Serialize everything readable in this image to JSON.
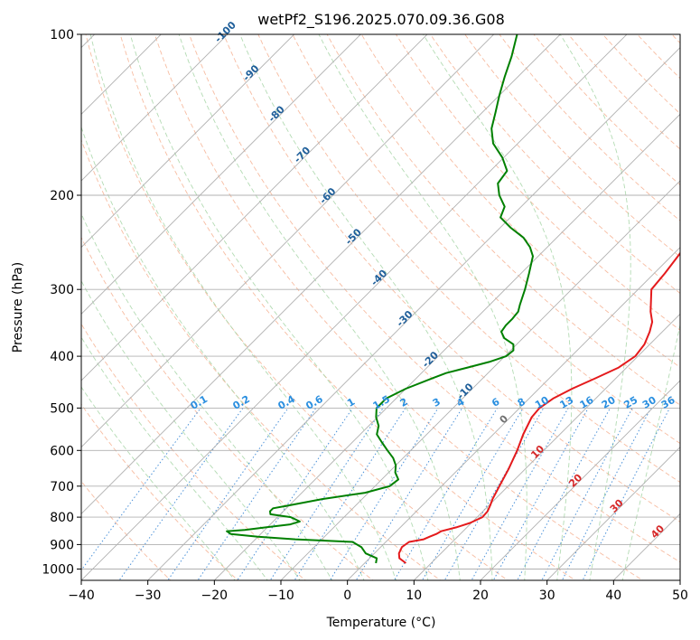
{
  "chart_data": {
    "type": "skew-t",
    "title": "wetPf2_S196.2025.070.09.36.G08",
    "xlabel": "Temperature (°C)",
    "ylabel": "Pressure (hPa)",
    "xlim": [
      -40,
      50
    ],
    "ylim": [
      1050,
      100
    ],
    "y_scale": "log",
    "x_ticks": [
      -40,
      -30,
      -20,
      -10,
      0,
      10,
      20,
      30,
      40,
      50
    ],
    "x_tick_labels": [
      "−40",
      "−30",
      "−20",
      "−10",
      "0",
      "10",
      "20",
      "30",
      "40",
      "50"
    ],
    "y_ticks": [
      1000,
      900,
      800,
      700,
      600,
      500,
      400,
      300,
      200,
      100
    ],
    "y_tick_labels": [
      "1000",
      "900",
      "800",
      "700",
      "600",
      "500",
      "400",
      "300",
      "200",
      "100"
    ],
    "grid": true,
    "skewed_isotherms": [
      -100,
      -90,
      -80,
      -70,
      -60,
      -50,
      -40,
      -30,
      -20,
      -10,
      0,
      10,
      20,
      30,
      40
    ],
    "isotherm_labels": [
      "-100",
      "-90",
      "-80",
      "-70",
      "-60",
      "-50",
      "-40",
      "-30",
      "-20",
      "-10",
      "0",
      "10",
      "20",
      "30",
      "40"
    ],
    "mixing_ratio_labels": [
      "0.1",
      "0.2",
      "0.4",
      "0.6",
      "1",
      "1.5",
      "2",
      "3",
      "4",
      "6",
      "8",
      "10",
      "13",
      "16",
      "20",
      "25",
      "30",
      "36"
    ],
    "series": [
      {
        "color": "#e41a1c",
        "p": [
          975,
          955,
          935,
          910,
          890,
          880,
          870,
          860,
          850,
          835,
          820,
          800,
          780,
          760,
          740,
          700,
          650,
          600,
          560,
          520,
          500,
          480,
          460,
          440,
          420,
          400,
          380,
          360,
          345,
          330,
          300,
          280,
          260,
          240,
          220,
          210,
          200,
          190,
          180,
          170,
          160,
          150,
          140,
          130,
          120,
          110,
          100
        ],
        "t": [
          6.2,
          4.5,
          3.7,
          3.2,
          3.5,
          5.3,
          5.8,
          6.4,
          6.7,
          8.5,
          9.8,
          10.8,
          10.7,
          10.2,
          9.6,
          8.7,
          7.5,
          6.0,
          4.5,
          3.2,
          3.0,
          3.6,
          5.0,
          6.9,
          8.8,
          9.6,
          9.2,
          8.1,
          7.0,
          5.2,
          2.0,
          1.6,
          1.0,
          0.3,
          -0.2,
          -1.0,
          -1.7,
          -2.3,
          -2.6,
          -3.0,
          -4.6,
          -6.0,
          -7.8,
          -9.0,
          -10.6,
          -12.4,
          -15.0
        ]
      },
      {
        "color": "#008000",
        "p": [
          975,
          955,
          935,
          910,
          890,
          880,
          870,
          860,
          850,
          845,
          835,
          825,
          815,
          800,
          790,
          780,
          770,
          760,
          740,
          720,
          700,
          680,
          660,
          640,
          620,
          600,
          580,
          560,
          540,
          520,
          500,
          480,
          460,
          440,
          430,
          420,
          410,
          400,
          390,
          380,
          370,
          360,
          350,
          340,
          330,
          320,
          300,
          280,
          260,
          250,
          240,
          230,
          220,
          210,
          200,
          190,
          180,
          170,
          160,
          150,
          140,
          130,
          120,
          110,
          100
        ],
        "t": [
          1.7,
          1.1,
          -1.3,
          -2.9,
          -5.0,
          -14.0,
          -20.0,
          -24.5,
          -25.5,
          -23.0,
          -20.0,
          -17.0,
          -16.0,
          -18.0,
          -21.5,
          -22.0,
          -22.0,
          -20.0,
          -16.0,
          -10.5,
          -7.8,
          -7.5,
          -9.0,
          -10.0,
          -11.5,
          -13.5,
          -15.5,
          -17.5,
          -18.5,
          -20.2,
          -21.5,
          -21.5,
          -20.0,
          -17.6,
          -16.3,
          -13.9,
          -11.5,
          -9.8,
          -9.6,
          -10.5,
          -12.8,
          -14.2,
          -14.5,
          -14.5,
          -14.7,
          -15.5,
          -17.0,
          -18.8,
          -20.8,
          -22.6,
          -25.0,
          -28.4,
          -31.5,
          -32.5,
          -35.0,
          -37.0,
          -37.5,
          -40.2,
          -43.7,
          -46.2,
          -48.0,
          -50.0,
          -52.0,
          -54.0,
          -56.5
        ]
      }
    ]
  }
}
